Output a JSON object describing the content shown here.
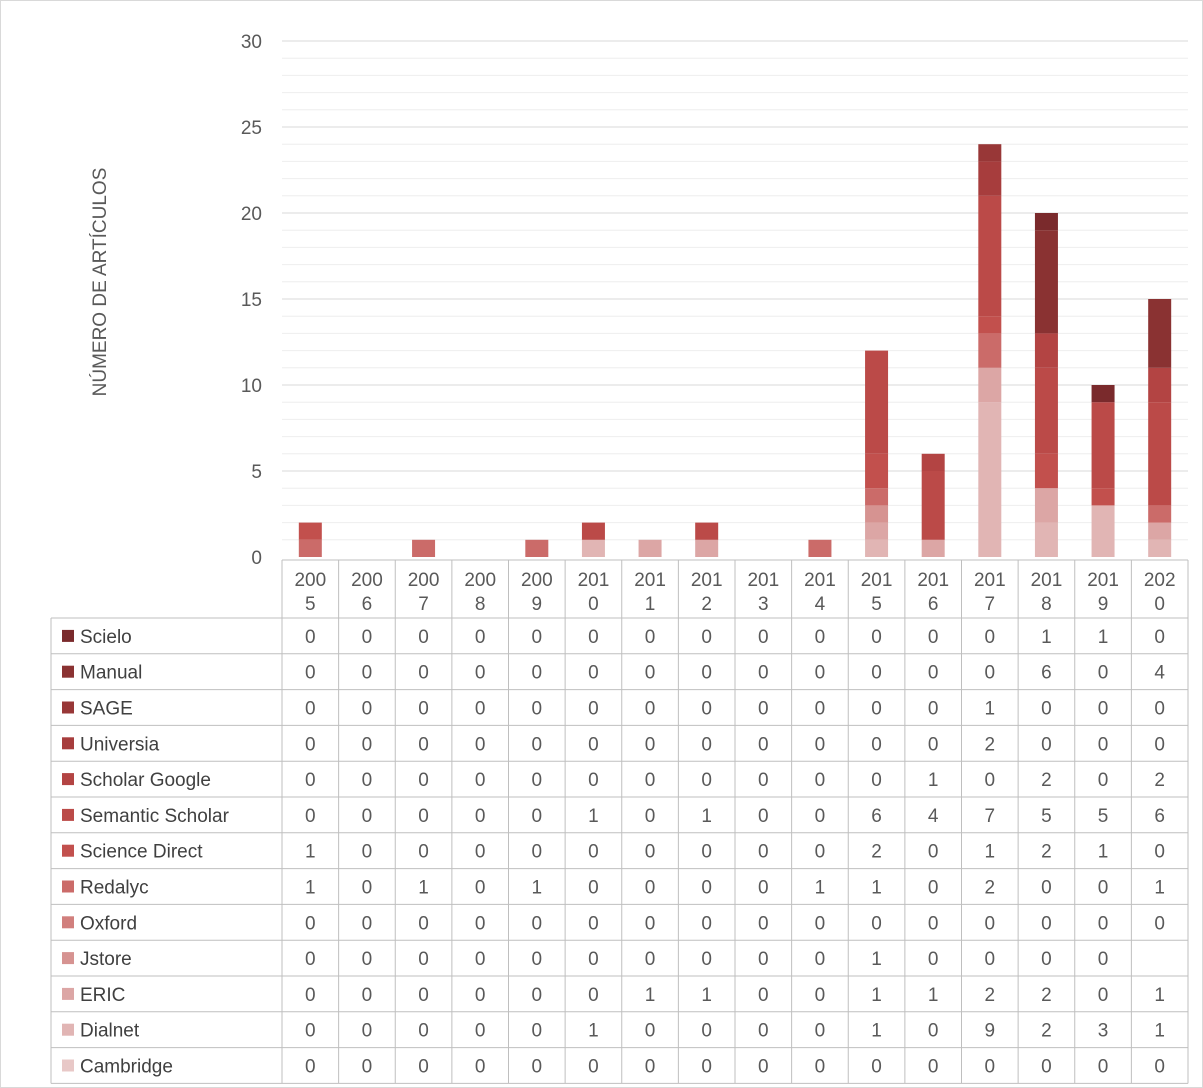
{
  "chart_data": {
    "type": "bar",
    "stacked": true,
    "ylabel": "NÚMERO DE ARTÍCULOS",
    "ylim": [
      0,
      30
    ],
    "yticks": [
      0,
      5,
      10,
      15,
      20,
      25,
      30
    ],
    "grid": true,
    "legend": "data-table",
    "categories": [
      [
        "200",
        "5"
      ],
      [
        "200",
        "6"
      ],
      [
        "200",
        "7"
      ],
      [
        "200",
        "8"
      ],
      [
        "200",
        "9"
      ],
      [
        "201",
        "0"
      ],
      [
        "201",
        "1"
      ],
      [
        "201",
        "2"
      ],
      [
        "201",
        "3"
      ],
      [
        "201",
        "4"
      ],
      [
        "201",
        "5"
      ],
      [
        "201",
        "6"
      ],
      [
        "201",
        "7"
      ],
      [
        "201",
        "8"
      ],
      [
        "201",
        "9"
      ],
      [
        "202",
        "0"
      ]
    ],
    "series": [
      {
        "name": "Scielo",
        "color": "#7a2a2c",
        "values": [
          "0",
          "0",
          "0",
          "0",
          "0",
          "0",
          "0",
          "0",
          "0",
          "0",
          "0",
          "0",
          "0",
          "1",
          "1",
          "0"
        ]
      },
      {
        "name": "Manual",
        "color": "#8a3232",
        "values": [
          "0",
          "0",
          "0",
          "0",
          "0",
          "0",
          "0",
          "0",
          "0",
          "0",
          "0",
          "0",
          "0",
          "6",
          "0",
          "4"
        ]
      },
      {
        "name": "SAGE",
        "color": "#983737",
        "values": [
          "0",
          "0",
          "0",
          "0",
          "0",
          "0",
          "0",
          "0",
          "0",
          "0",
          "0",
          "0",
          "1",
          "0",
          "0",
          "0"
        ]
      },
      {
        "name": "Universia",
        "color": "#a73d3d",
        "values": [
          "0",
          "0",
          "0",
          "0",
          "0",
          "0",
          "0",
          "0",
          "0",
          "0",
          "0",
          "0",
          "2",
          "0",
          "0",
          "0"
        ]
      },
      {
        "name": "Scholar Google",
        "color": "#b34443",
        "values": [
          "0",
          "0",
          "0",
          "0",
          "0",
          "0",
          "0",
          "0",
          "0",
          "0",
          "0",
          "1",
          "0",
          "2",
          "0",
          "2"
        ]
      },
      {
        "name": "Semantic Scholar",
        "color": "#bb4a48",
        "values": [
          "0",
          "0",
          "0",
          "0",
          "0",
          "1",
          "0",
          "1",
          "0",
          "0",
          "6",
          "4",
          "7",
          "5",
          "5",
          "6"
        ]
      },
      {
        "name": "Science Direct",
        "color": "#c2504d",
        "values": [
          "1",
          "0",
          "0",
          "0",
          "0",
          "0",
          "0",
          "0",
          "0",
          "0",
          "2",
          "0",
          "1",
          "2",
          "1",
          "0"
        ]
      },
      {
        "name": "Redalyc",
        "color": "#cb6b69",
        "values": [
          "1",
          "0",
          "1",
          "0",
          "1",
          "0",
          "0",
          "0",
          "0",
          "1",
          "1",
          "0",
          "2",
          "0",
          "0",
          "1"
        ]
      },
      {
        "name": "Oxford",
        "color": "#d17f7d",
        "values": [
          "0",
          "0",
          "0",
          "0",
          "0",
          "0",
          "0",
          "0",
          "0",
          "0",
          "0",
          "0",
          "0",
          "0",
          "0",
          "0"
        ]
      },
      {
        "name": "Jstore",
        "color": "#d69391",
        "values": [
          "0",
          "0",
          "0",
          "0",
          "0",
          "0",
          "0",
          "0",
          "0",
          "0",
          "1",
          "0",
          "0",
          "0",
          "0",
          ""
        ]
      },
      {
        "name": "ERIC",
        "color": "#dca6a5",
        "values": [
          "0",
          "0",
          "0",
          "0",
          "0",
          "0",
          "1",
          "1",
          "0",
          "0",
          "1",
          "1",
          "2",
          "2",
          "0",
          "1"
        ]
      },
      {
        "name": "Dialnet",
        "color": "#e1b5b4",
        "values": [
          "0",
          "0",
          "0",
          "0",
          "0",
          "1",
          "0",
          "0",
          "0",
          "0",
          "1",
          "0",
          "9",
          "2",
          "3",
          "1"
        ]
      },
      {
        "name": "Cambridge",
        "color": "#e8c8c7",
        "values": [
          "0",
          "0",
          "0",
          "0",
          "0",
          "0",
          "0",
          "0",
          "0",
          "0",
          "0",
          "0",
          "0",
          "0",
          "0",
          "0"
        ]
      }
    ]
  }
}
